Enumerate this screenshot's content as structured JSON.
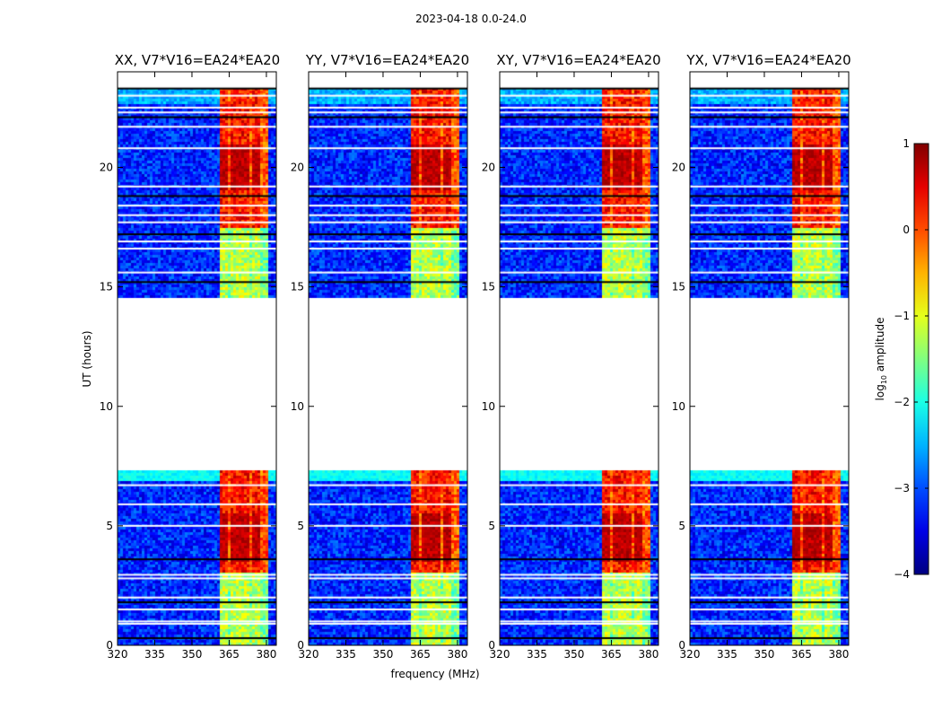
{
  "chart_data": {
    "type": "heatmap",
    "suptitle": "2023-04-18 0.0-24.0",
    "xlabel": "frequency (MHz)",
    "ylabel": "UT (hours)",
    "colorbar": {
      "label": "log10 amplitude",
      "label_base": "log",
      "label_sub": "10",
      "label_rest": " amplitude",
      "range": [
        -4,
        1
      ],
      "ticks": [
        -4,
        -3,
        -2,
        -1,
        0,
        1
      ],
      "tick_labels": [
        "−4",
        "−3",
        "−2",
        "−1",
        "0",
        "1"
      ],
      "colormap": "jet"
    },
    "xlim": [
      320,
      384
    ],
    "ylim": [
      0,
      24
    ],
    "xticks": [
      320,
      335,
      350,
      365,
      380
    ],
    "xtick_labels": [
      "320",
      "335",
      "350",
      "365",
      "380"
    ],
    "yticks": [
      0,
      5,
      10,
      15,
      20
    ],
    "ytick_labels": [
      "0",
      "5",
      "10",
      "15",
      "20"
    ],
    "data_gap_hours": [
      7.3,
      14.5
    ],
    "observed_ranges_hours": [
      [
        0.0,
        7.3
      ],
      [
        14.5,
        23.3
      ]
    ],
    "rfi_band_mhz": [
      361,
      381
    ],
    "rfi_channel_centers_mhz": [
      362.5,
      367,
      371,
      376
    ],
    "panels": [
      {
        "title": "XX, V7*V16=EA24*EA20",
        "polarization": "XX"
      },
      {
        "title": "YY, V7*V16=EA24*EA20",
        "polarization": "YY"
      },
      {
        "title": "XY, V7*V16=EA24*EA20",
        "polarization": "XY"
      },
      {
        "title": "YX, V7*V16=EA24*EA20",
        "polarization": "YX"
      }
    ],
    "amplitude_levels_log10": {
      "background": -3.2,
      "rfi_band_quiet": -1.2,
      "rfi_band_active": 0.3,
      "rfi_peak": 0.9
    },
    "flagged_rows_hours": [
      0.3,
      0.9,
      1.0,
      1.5,
      1.8,
      2.0,
      2.8,
      2.95,
      3.6,
      5.0,
      5.9,
      6.7,
      15.2,
      15.6,
      16.6,
      16.9,
      17.2,
      17.7,
      18.0,
      18.4,
      18.8,
      19.2,
      20.8,
      21.7,
      22.1,
      22.3,
      22.5,
      23.0,
      23.3
    ]
  }
}
